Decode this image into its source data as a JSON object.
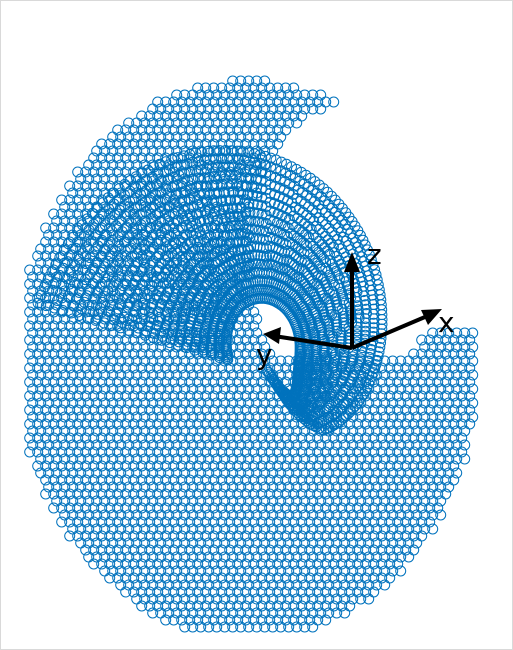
{
  "chart_data": {
    "type": "scatter",
    "projection": "3d",
    "marker": "open-circle",
    "marker_color": "#0072BD",
    "shape": "spiral shell surface of overlapping rings",
    "grid": false,
    "axes_visible": false,
    "orientation_triad": {
      "color": "#000000",
      "axes": [
        {
          "label": "x",
          "direction": "right-up"
        },
        {
          "label": "y",
          "direction": "left"
        },
        {
          "label": "z",
          "direction": "up"
        }
      ]
    }
  }
}
